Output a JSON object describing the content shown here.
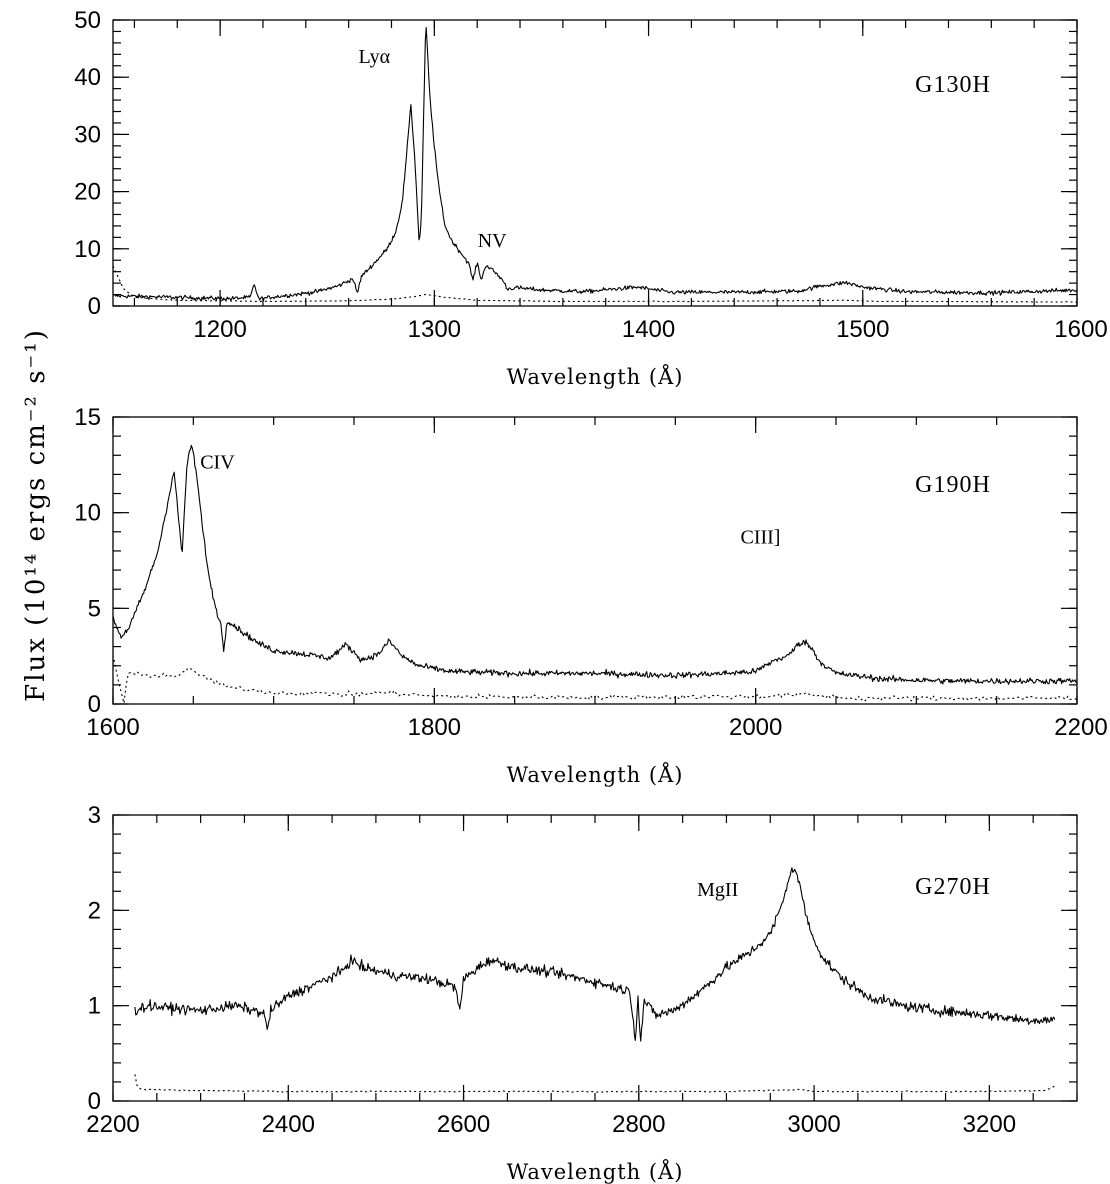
{
  "y_axis_label": "Flux (10¹⁴ ergs cm⁻² s⁻¹)",
  "chart_data": [
    {
      "type": "line",
      "grating": "G130H",
      "xlabel": "Wavelength (Å)",
      "xlim": [
        1150,
        1600
      ],
      "ylim": [
        0,
        50
      ],
      "xticks": [
        1200,
        1300,
        1400,
        1500,
        1600
      ],
      "yticks": [
        0,
        10,
        20,
        30,
        40,
        50
      ],
      "x_minor_step": 20,
      "y_minor_step": 2,
      "annotations": [
        {
          "text": "Lyα",
          "x": 1272,
          "y": 42.5
        },
        {
          "text": "NV",
          "x": 1327,
          "y": 10.3
        }
      ],
      "series": [
        {
          "style": "solid",
          "noise": 0.35,
          "points": [
            [
              1150,
              1.8
            ],
            [
              1170,
              1.6
            ],
            [
              1190,
              1.4
            ],
            [
              1205,
              1.3
            ],
            [
              1214,
              1.5
            ],
            [
              1216,
              3.8
            ],
            [
              1218,
              1.2
            ],
            [
              1225,
              1.6
            ],
            [
              1235,
              2.0
            ],
            [
              1245,
              2.5
            ],
            [
              1255,
              3.5
            ],
            [
              1262,
              4.8
            ],
            [
              1264,
              2.2
            ],
            [
              1266,
              5.2
            ],
            [
              1272,
              7.5
            ],
            [
              1278,
              10
            ],
            [
              1282,
              13
            ],
            [
              1285,
              18
            ],
            [
              1287,
              26
            ],
            [
              1289,
              35.5
            ],
            [
              1291,
              25
            ],
            [
              1293,
              10.5
            ],
            [
              1294,
              16
            ],
            [
              1296,
              50
            ],
            [
              1298,
              36
            ],
            [
              1300,
              28
            ],
            [
              1302,
              21
            ],
            [
              1305,
              14
            ],
            [
              1308,
              11.5
            ],
            [
              1312,
              9.5
            ],
            [
              1316,
              7.5
            ],
            [
              1318,
              4.5
            ],
            [
              1320,
              7.6
            ],
            [
              1322,
              4.5
            ],
            [
              1324,
              7.2
            ],
            [
              1328,
              6
            ],
            [
              1332,
              4.5
            ],
            [
              1334,
              3.0
            ],
            [
              1338,
              3.2
            ],
            [
              1350,
              2.8
            ],
            [
              1370,
              2.5
            ],
            [
              1385,
              3.0
            ],
            [
              1395,
              3.3
            ],
            [
              1410,
              2.4
            ],
            [
              1440,
              2.4
            ],
            [
              1470,
              2.6
            ],
            [
              1480,
              3.5
            ],
            [
              1492,
              4.1
            ],
            [
              1500,
              3.3
            ],
            [
              1520,
              2.5
            ],
            [
              1560,
              2.3
            ],
            [
              1600,
              2.8
            ]
          ]
        },
        {
          "style": "dotted",
          "noise": 0.05,
          "points": [
            [
              1150,
              7
            ],
            [
              1155,
              3
            ],
            [
              1160,
              1.5
            ],
            [
              1180,
              1.0
            ],
            [
              1220,
              0.8
            ],
            [
              1260,
              0.9
            ],
            [
              1280,
              1.2
            ],
            [
              1290,
              1.6
            ],
            [
              1296,
              2.0
            ],
            [
              1305,
              1.5
            ],
            [
              1320,
              1.0
            ],
            [
              1360,
              0.8
            ],
            [
              1420,
              0.8
            ],
            [
              1490,
              1.0
            ],
            [
              1510,
              0.8
            ],
            [
              1600,
              0.7
            ]
          ]
        }
      ]
    },
    {
      "type": "line",
      "grating": "G190H",
      "xlabel": "Wavelength (Å)",
      "xlim": [
        1600,
        2200
      ],
      "ylim": [
        0,
        15
      ],
      "xticks": [
        1600,
        1800,
        2000,
        2200
      ],
      "yticks": [
        0,
        5,
        10,
        15
      ],
      "x_minor_step": 50,
      "y_minor_step": 1,
      "annotations": [
        {
          "text": "CIV",
          "x": 1665,
          "y": 12.3
        },
        {
          "text": "CIII]",
          "x": 2003,
          "y": 8.4
        }
      ],
      "series": [
        {
          "style": "solid",
          "noise": 0.15,
          "points": [
            [
              1600,
              4.5
            ],
            [
              1605,
              3.5
            ],
            [
              1610,
              4.0
            ],
            [
              1615,
              5.0
            ],
            [
              1620,
              6.0
            ],
            [
              1628,
              8.0
            ],
            [
              1634,
              10.5
            ],
            [
              1638,
              12.2
            ],
            [
              1641,
              9.5
            ],
            [
              1643,
              7.8
            ],
            [
              1646,
              12.5
            ],
            [
              1649,
              13.6
            ],
            [
              1652,
              12.0
            ],
            [
              1656,
              9.0
            ],
            [
              1660,
              6.5
            ],
            [
              1664,
              5.0
            ],
            [
              1667,
              4.2
            ],
            [
              1669,
              2.8
            ],
            [
              1671,
              4.4
            ],
            [
              1680,
              3.8
            ],
            [
              1690,
              3.2
            ],
            [
              1700,
              2.8
            ],
            [
              1720,
              2.6
            ],
            [
              1735,
              2.4
            ],
            [
              1745,
              3.1
            ],
            [
              1755,
              2.3
            ],
            [
              1765,
              2.6
            ],
            [
              1772,
              3.3
            ],
            [
              1780,
              2.5
            ],
            [
              1790,
              2.0
            ],
            [
              1810,
              1.7
            ],
            [
              1850,
              1.6
            ],
            [
              1900,
              1.6
            ],
            [
              1950,
              1.5
            ],
            [
              1980,
              1.6
            ],
            [
              2000,
              1.7
            ],
            [
              2012,
              2.3
            ],
            [
              2020,
              2.5
            ],
            [
              2025,
              3.0
            ],
            [
              2030,
              3.3
            ],
            [
              2035,
              2.9
            ],
            [
              2040,
              2.2
            ],
            [
              2050,
              1.6
            ],
            [
              2080,
              1.3
            ],
            [
              2120,
              1.2
            ],
            [
              2160,
              1.2
            ],
            [
              2200,
              1.2
            ]
          ]
        },
        {
          "style": "dotted",
          "noise": 0.12,
          "points": [
            [
              1600,
              2.5
            ],
            [
              1604,
              1.0
            ],
            [
              1607,
              0.0
            ],
            [
              1609,
              1.6
            ],
            [
              1620,
              1.5
            ],
            [
              1640,
              1.5
            ],
            [
              1648,
              1.8
            ],
            [
              1655,
              1.5
            ],
            [
              1670,
              0.9
            ],
            [
              1700,
              0.6
            ],
            [
              1750,
              0.5
            ],
            [
              1770,
              0.6
            ],
            [
              1800,
              0.4
            ],
            [
              1900,
              0.35
            ],
            [
              2000,
              0.4
            ],
            [
              2030,
              0.5
            ],
            [
              2060,
              0.3
            ],
            [
              2200,
              0.3
            ]
          ]
        }
      ]
    },
    {
      "type": "line",
      "grating": "G270H",
      "xlabel": "Wavelength (Å)",
      "xlim": [
        2200,
        3300
      ],
      "ylim": [
        0,
        3
      ],
      "xticks": [
        2200,
        2400,
        2600,
        2800,
        3000,
        3200
      ],
      "yticks": [
        0,
        1,
        2,
        3
      ],
      "x_minor_step": 50,
      "y_minor_step": 0.2,
      "annotations": [
        {
          "text": "MgII",
          "x": 2890,
          "y": 2.15
        }
      ],
      "series": [
        {
          "style": "solid",
          "noise": 0.05,
          "points": [
            [
              2225,
              0.95
            ],
            [
              2240,
              1.0
            ],
            [
              2260,
              0.98
            ],
            [
              2300,
              0.95
            ],
            [
              2340,
              1.0
            ],
            [
              2372,
              0.92
            ],
            [
              2376,
              0.75
            ],
            [
              2380,
              0.95
            ],
            [
              2400,
              1.1
            ],
            [
              2430,
              1.22
            ],
            [
              2460,
              1.35
            ],
            [
              2472,
              1.48
            ],
            [
              2485,
              1.4
            ],
            [
              2520,
              1.32
            ],
            [
              2560,
              1.28
            ],
            [
              2590,
              1.2
            ],
            [
              2596,
              0.95
            ],
            [
              2600,
              1.28
            ],
            [
              2620,
              1.42
            ],
            [
              2630,
              1.48
            ],
            [
              2660,
              1.4
            ],
            [
              2700,
              1.35
            ],
            [
              2750,
              1.25
            ],
            [
              2790,
              1.15
            ],
            [
              2796,
              0.65
            ],
            [
              2799,
              1.1
            ],
            [
              2802,
              0.62
            ],
            [
              2806,
              1.05
            ],
            [
              2820,
              0.9
            ],
            [
              2840,
              0.95
            ],
            [
              2870,
              1.15
            ],
            [
              2900,
              1.4
            ],
            [
              2930,
              1.58
            ],
            [
              2950,
              1.75
            ],
            [
              2965,
              2.1
            ],
            [
              2972,
              2.38
            ],
            [
              2978,
              2.45
            ],
            [
              2985,
              2.2
            ],
            [
              2995,
              1.8
            ],
            [
              3010,
              1.5
            ],
            [
              3030,
              1.3
            ],
            [
              3060,
              1.1
            ],
            [
              3100,
              1.0
            ],
            [
              3140,
              0.95
            ],
            [
              3200,
              0.9
            ],
            [
              3240,
              0.85
            ],
            [
              3275,
              0.85
            ]
          ]
        },
        {
          "style": "dotted",
          "noise": 0.006,
          "points": [
            [
              2225,
              0.28
            ],
            [
              2228,
              0.14
            ],
            [
              2235,
              0.12
            ],
            [
              2300,
              0.11
            ],
            [
              2400,
              0.1
            ],
            [
              2500,
              0.1
            ],
            [
              2700,
              0.1
            ],
            [
              2900,
              0.1
            ],
            [
              2980,
              0.12
            ],
            [
              3000,
              0.1
            ],
            [
              3200,
              0.1
            ],
            [
              3265,
              0.11
            ],
            [
              3275,
              0.16
            ]
          ]
        }
      ]
    }
  ]
}
